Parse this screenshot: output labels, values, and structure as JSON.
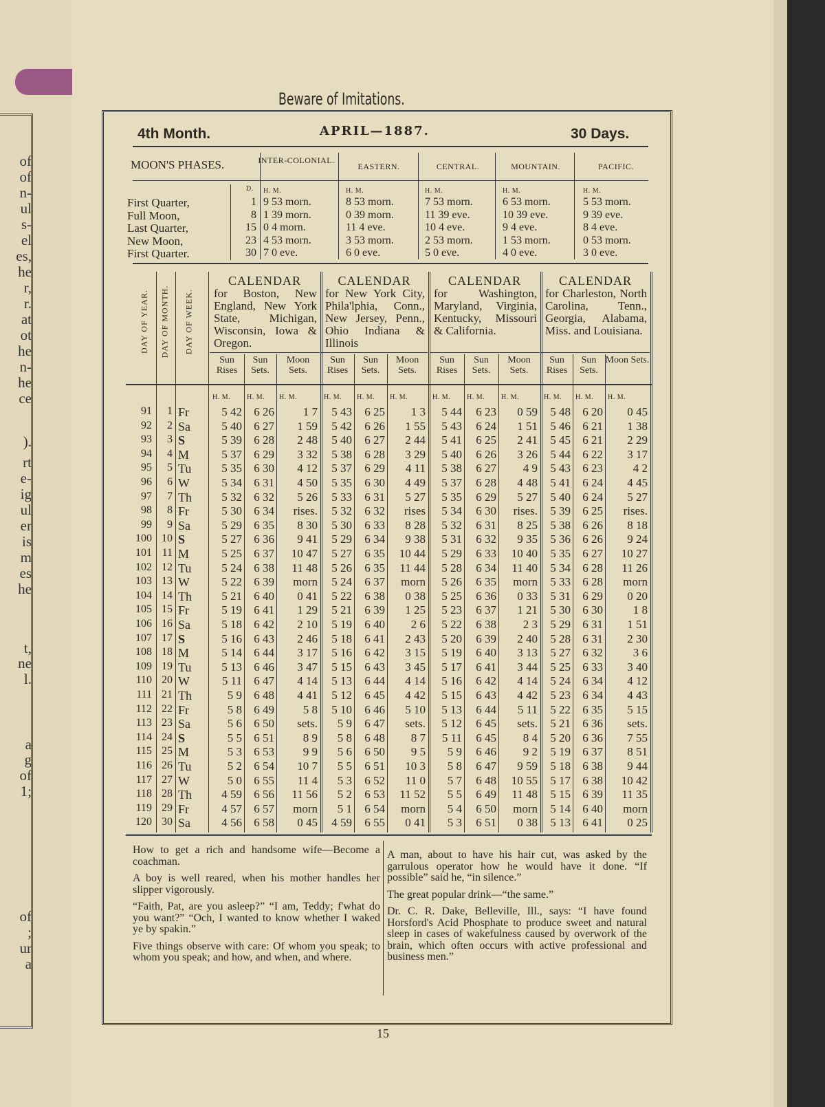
{
  "prev_page_fragments": [
    "of",
    "of",
    "n-",
    "ul",
    "s-",
    "el",
    "es,",
    "he",
    "r,",
    "r.",
    "at",
    "ot",
    "he",
    "n-",
    "he",
    "ce",
    ").",
    "rt",
    "e-",
    "ig",
    "ul",
    "er",
    "is",
    "m",
    "es",
    "he",
    "t,",
    "ne",
    "l.",
    "a",
    "g",
    "of",
    "1;",
    "of",
    ";",
    "ur",
    "a"
  ],
  "running_title": "Beware of Imitations.",
  "header": {
    "month": "4th Month.",
    "title": "APRIL—1887.",
    "days": "30 Days."
  },
  "moon_phases": {
    "heading": "MOON'S PHASES.",
    "zones": [
      "INTER-COLONIAL.",
      "EASTERN.",
      "CENTRAL.",
      "MOUNTAIN.",
      "PACIFIC."
    ],
    "d_label": "D.",
    "hm_label": "H. M.",
    "rows": [
      {
        "phase": "First Quarter,",
        "day": "1",
        "times": [
          "9 53 morn.",
          "8 53 morn.",
          "7 53 morn.",
          "6 53 morn.",
          "5 53 morn."
        ]
      },
      {
        "phase": "Full Moon,",
        "day": "8",
        "times": [
          "1 39 morn.",
          "0 39 morn.",
          "11 39 eve.",
          "10 39 eve.",
          "9 39 eve."
        ]
      },
      {
        "phase": "Last Quarter,",
        "day": "15",
        "times": [
          "0 4 morn.",
          "11 4 eve.",
          "10 4 eve.",
          "9 4 eve.",
          "8 4 eve."
        ]
      },
      {
        "phase": "New Moon,",
        "day": "23",
        "times": [
          "4 53 morn.",
          "3 53 morn.",
          "2 53 morn.",
          "1 53 morn.",
          "0 53 morn."
        ]
      },
      {
        "phase": "First Quarter.",
        "day": "30",
        "times": [
          "7 0 eve.",
          "6 0 eve.",
          "5 0 eve.",
          "4 0 eve.",
          "3 0 eve."
        ]
      }
    ]
  },
  "calendar": {
    "side_labels": [
      "DAY OF YEAR.",
      "DAY OF MONTH.",
      "DAY OF WEEK."
    ],
    "regions": [
      {
        "title": "CALENDAR",
        "desc": "for Boston, New England, New York State, Michigan, Wisconsin, Iowa & Oregon."
      },
      {
        "title": "CALENDAR",
        "desc": "for New York City, Phila'lphia, Conn., New Jersey, Penn., Ohio Indiana & Illinois"
      },
      {
        "title": "CALENDAR",
        "desc": "for Washington, Maryland, Virginia, Kentucky, Missouri & California."
      },
      {
        "title": "CALENDAR",
        "desc": "for Charleston, North Carolina, Tenn., Georgia, Alabama, Miss. and Louisiana."
      }
    ],
    "col_heads": [
      "Sun Rises",
      "Sun Sets.",
      "Moon Sets."
    ],
    "hm_label": "H. M.",
    "rows": [
      [
        "91",
        "1",
        "Fr",
        "5 42",
        "6 26",
        "1 7",
        "5 43",
        "6 25",
        "1 3",
        "5 44",
        "6 23",
        "0 59",
        "5 48",
        "6 20",
        "0 45"
      ],
      [
        "92",
        "2",
        "Sa",
        "5 40",
        "6 27",
        "1 59",
        "5 42",
        "6 26",
        "1 55",
        "5 43",
        "6 24",
        "1 51",
        "5 46",
        "6 21",
        "1 38"
      ],
      [
        "93",
        "3",
        "S",
        "5 39",
        "6 28",
        "2 48",
        "5 40",
        "6 27",
        "2 44",
        "5 41",
        "6 25",
        "2 41",
        "5 45",
        "6 21",
        "2 29"
      ],
      [
        "94",
        "4",
        "M",
        "5 37",
        "6 29",
        "3 32",
        "5 38",
        "6 28",
        "3 29",
        "5 40",
        "6 26",
        "3 26",
        "5 44",
        "6 22",
        "3 17"
      ],
      [
        "95",
        "5",
        "Tu",
        "5 35",
        "6 30",
        "4 12",
        "5 37",
        "6 29",
        "4 11",
        "5 38",
        "6 27",
        "4 9",
        "5 43",
        "6 23",
        "4 2"
      ],
      [
        "96",
        "6",
        "W",
        "5 34",
        "6 31",
        "4 50",
        "5 35",
        "6 30",
        "4 49",
        "5 37",
        "6 28",
        "4 48",
        "5 41",
        "6 24",
        "4 45"
      ],
      [
        "97",
        "7",
        "Th",
        "5 32",
        "6 32",
        "5 26",
        "5 33",
        "6 31",
        "5 27",
        "5 35",
        "6 29",
        "5 27",
        "5 40",
        "6 24",
        "5 27"
      ],
      [
        "98",
        "8",
        "Fr",
        "5 30",
        "6 34",
        "rises.",
        "5 32",
        "6 32",
        "rises",
        "5 34",
        "6 30",
        "rises.",
        "5 39",
        "6 25",
        "rises."
      ],
      [
        "99",
        "9",
        "Sa",
        "5 29",
        "6 35",
        "8 30",
        "5 30",
        "6 33",
        "8 28",
        "5 32",
        "6 31",
        "8 25",
        "5 38",
        "6 26",
        "8 18"
      ],
      [
        "100",
        "10",
        "S",
        "5 27",
        "6 36",
        "9 41",
        "5 29",
        "6 34",
        "9 38",
        "5 31",
        "6 32",
        "9 35",
        "5 36",
        "6 26",
        "9 24"
      ],
      [
        "101",
        "11",
        "M",
        "5 25",
        "6 37",
        "10 47",
        "5 27",
        "6 35",
        "10 44",
        "5 29",
        "6 33",
        "10 40",
        "5 35",
        "6 27",
        "10 27"
      ],
      [
        "102",
        "12",
        "Tu",
        "5 24",
        "6 38",
        "11 48",
        "5 26",
        "6 35",
        "11 44",
        "5 28",
        "6 34",
        "11 40",
        "5 34",
        "6 28",
        "11 26"
      ],
      [
        "103",
        "13",
        "W",
        "5 22",
        "6 39",
        "morn",
        "5 24",
        "6 37",
        "morn",
        "5 26",
        "6 35",
        "morn",
        "5 33",
        "6 28",
        "morn"
      ],
      [
        "104",
        "14",
        "Th",
        "5 21",
        "6 40",
        "0 41",
        "5 22",
        "6 38",
        "0 38",
        "5 25",
        "6 36",
        "0 33",
        "5 31",
        "6 29",
        "0 20"
      ],
      [
        "105",
        "15",
        "Fr",
        "5 19",
        "6 41",
        "1 29",
        "5 21",
        "6 39",
        "1 25",
        "5 23",
        "6 37",
        "1 21",
        "5 30",
        "6 30",
        "1 8"
      ],
      [
        "106",
        "16",
        "Sa",
        "5 18",
        "6 42",
        "2 10",
        "5 19",
        "6 40",
        "2 6",
        "5 22",
        "6 38",
        "2 3",
        "5 29",
        "6 31",
        "1 51"
      ],
      [
        "107",
        "17",
        "S",
        "5 16",
        "6 43",
        "2 46",
        "5 18",
        "6 41",
        "2 43",
        "5 20",
        "6 39",
        "2 40",
        "5 28",
        "6 31",
        "2 30"
      ],
      [
        "108",
        "18",
        "M",
        "5 14",
        "6 44",
        "3 17",
        "5 16",
        "6 42",
        "3 15",
        "5 19",
        "6 40",
        "3 13",
        "5 27",
        "6 32",
        "3 6"
      ],
      [
        "109",
        "19",
        "Tu",
        "5 13",
        "6 46",
        "3 47",
        "5 15",
        "6 43",
        "3 45",
        "5 17",
        "6 41",
        "3 44",
        "5 25",
        "6 33",
        "3 40"
      ],
      [
        "110",
        "20",
        "W",
        "5 11",
        "6 47",
        "4 14",
        "5 13",
        "6 44",
        "4 14",
        "5 16",
        "6 42",
        "4 14",
        "5 24",
        "6 34",
        "4 12"
      ],
      [
        "111",
        "21",
        "Th",
        "5 9",
        "6 48",
        "4 41",
        "5 12",
        "6 45",
        "4 42",
        "5 15",
        "6 43",
        "4 42",
        "5 23",
        "6 34",
        "4 43"
      ],
      [
        "112",
        "22",
        "Fr",
        "5 8",
        "6 49",
        "5 8",
        "5 10",
        "6 46",
        "5 10",
        "5 13",
        "6 44",
        "5 11",
        "5 22",
        "6 35",
        "5 15"
      ],
      [
        "113",
        "23",
        "Sa",
        "5 6",
        "6 50",
        "sets.",
        "5 9",
        "6 47",
        "sets.",
        "5 12",
        "6 45",
        "sets.",
        "5 21",
        "6 36",
        "sets."
      ],
      [
        "114",
        "24",
        "S",
        "5 5",
        "6 51",
        "8 9",
        "5 8",
        "6 48",
        "8 7",
        "5 11",
        "6 45",
        "8 4",
        "5 20",
        "6 36",
        "7 55"
      ],
      [
        "115",
        "25",
        "M",
        "5 3",
        "6 53",
        "9 9",
        "5 6",
        "6 50",
        "9 5",
        "5 9",
        "6 46",
        "9 2",
        "5 19",
        "6 37",
        "8 51"
      ],
      [
        "116",
        "26",
        "Tu",
        "5 2",
        "6 54",
        "10 7",
        "5 5",
        "6 51",
        "10 3",
        "5 8",
        "6 47",
        "9 59",
        "5 18",
        "6 38",
        "9 44"
      ],
      [
        "117",
        "27",
        "W",
        "5 0",
        "6 55",
        "11 4",
        "5 3",
        "6 52",
        "11 0",
        "5 7",
        "6 48",
        "10 55",
        "5 17",
        "6 38",
        "10 42"
      ],
      [
        "118",
        "28",
        "Th",
        "4 59",
        "6 56",
        "11 56",
        "5 2",
        "6 53",
        "11 52",
        "5 5",
        "6 49",
        "11 48",
        "5 15",
        "6 39",
        "11 35"
      ],
      [
        "119",
        "29",
        "Fr",
        "4 57",
        "6 57",
        "morn",
        "5 1",
        "6 54",
        "morn",
        "5 4",
        "6 50",
        "morn",
        "5 14",
        "6 40",
        "morn"
      ],
      [
        "120",
        "30",
        "Sa",
        "4 56",
        "6 58",
        "0 45",
        "4 59",
        "6 55",
        "0 41",
        "5 3",
        "6 51",
        "0 38",
        "5 13",
        "6 41",
        "0 25"
      ]
    ]
  },
  "anecdotes_left": [
    "How to get a rich and handsome wife—Become a coachman.",
    "A boy is well reared, when his mother handles her slipper vigorously.",
    "“Faith, Pat, are you asleep?” “I am, Teddy; f'what do you want?” “Och, I wanted to know whether I waked ye by spakin.”",
    "Five things observe with care: Of whom you speak; to whom you speak; and how, and when, and where."
  ],
  "anecdotes_right": [
    "A man, about to have his hair cut, was asked by the garrulous operator how he would have it done. “If possible” said he, “in silence.”",
    "The great popular drink—“the same.”",
    "Dr. C. R. Dake, Belleville, Ill., says: “I have found Horsford's Acid Phosphate to produce sweet and natural sleep in cases of wakefulness caused by overwork of the brain, which often occurs with active professional and business men.”"
  ],
  "page_number": "15",
  "colors": {
    "paper": "#e6dcbf",
    "ink": "#2b2620",
    "ribbon": "#9b5a86",
    "background": "#2a2a2a"
  }
}
